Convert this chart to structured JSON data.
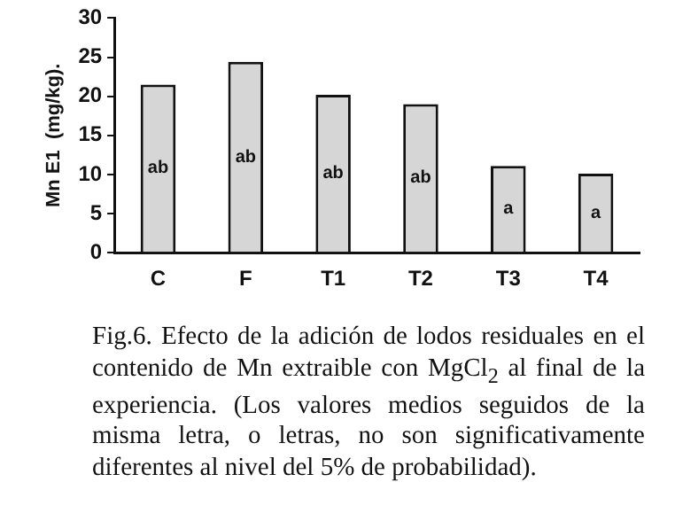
{
  "chart_data": {
    "type": "bar",
    "ylabel": "Mn E1  (mg/kg).",
    "categories": [
      "C",
      "F",
      "T1",
      "T2",
      "T3",
      "T4"
    ],
    "values": [
      21.5,
      24.4,
      20.2,
      19,
      11.1,
      10.1
    ],
    "color": "#d6d6d6",
    "ylim": [
      0,
      30
    ],
    "yticks": [
      0,
      5,
      10,
      15,
      20,
      25,
      30
    ],
    "grid": false,
    "legend": false,
    "value_labels": [
      "ab",
      "ab",
      "ab",
      "ab",
      "a",
      "a"
    ],
    "annotations": [
      "Fig.6. Efecto de la adición de lodos residuales en el contenido de Mn extraible con MgCl$_{2}$ al final de la experiencia. (Los valores medios seguidos de la misma letra, o letras, no son significativamente diferentes al nivel del 5% de probabilidad)."
    ]
  }
}
